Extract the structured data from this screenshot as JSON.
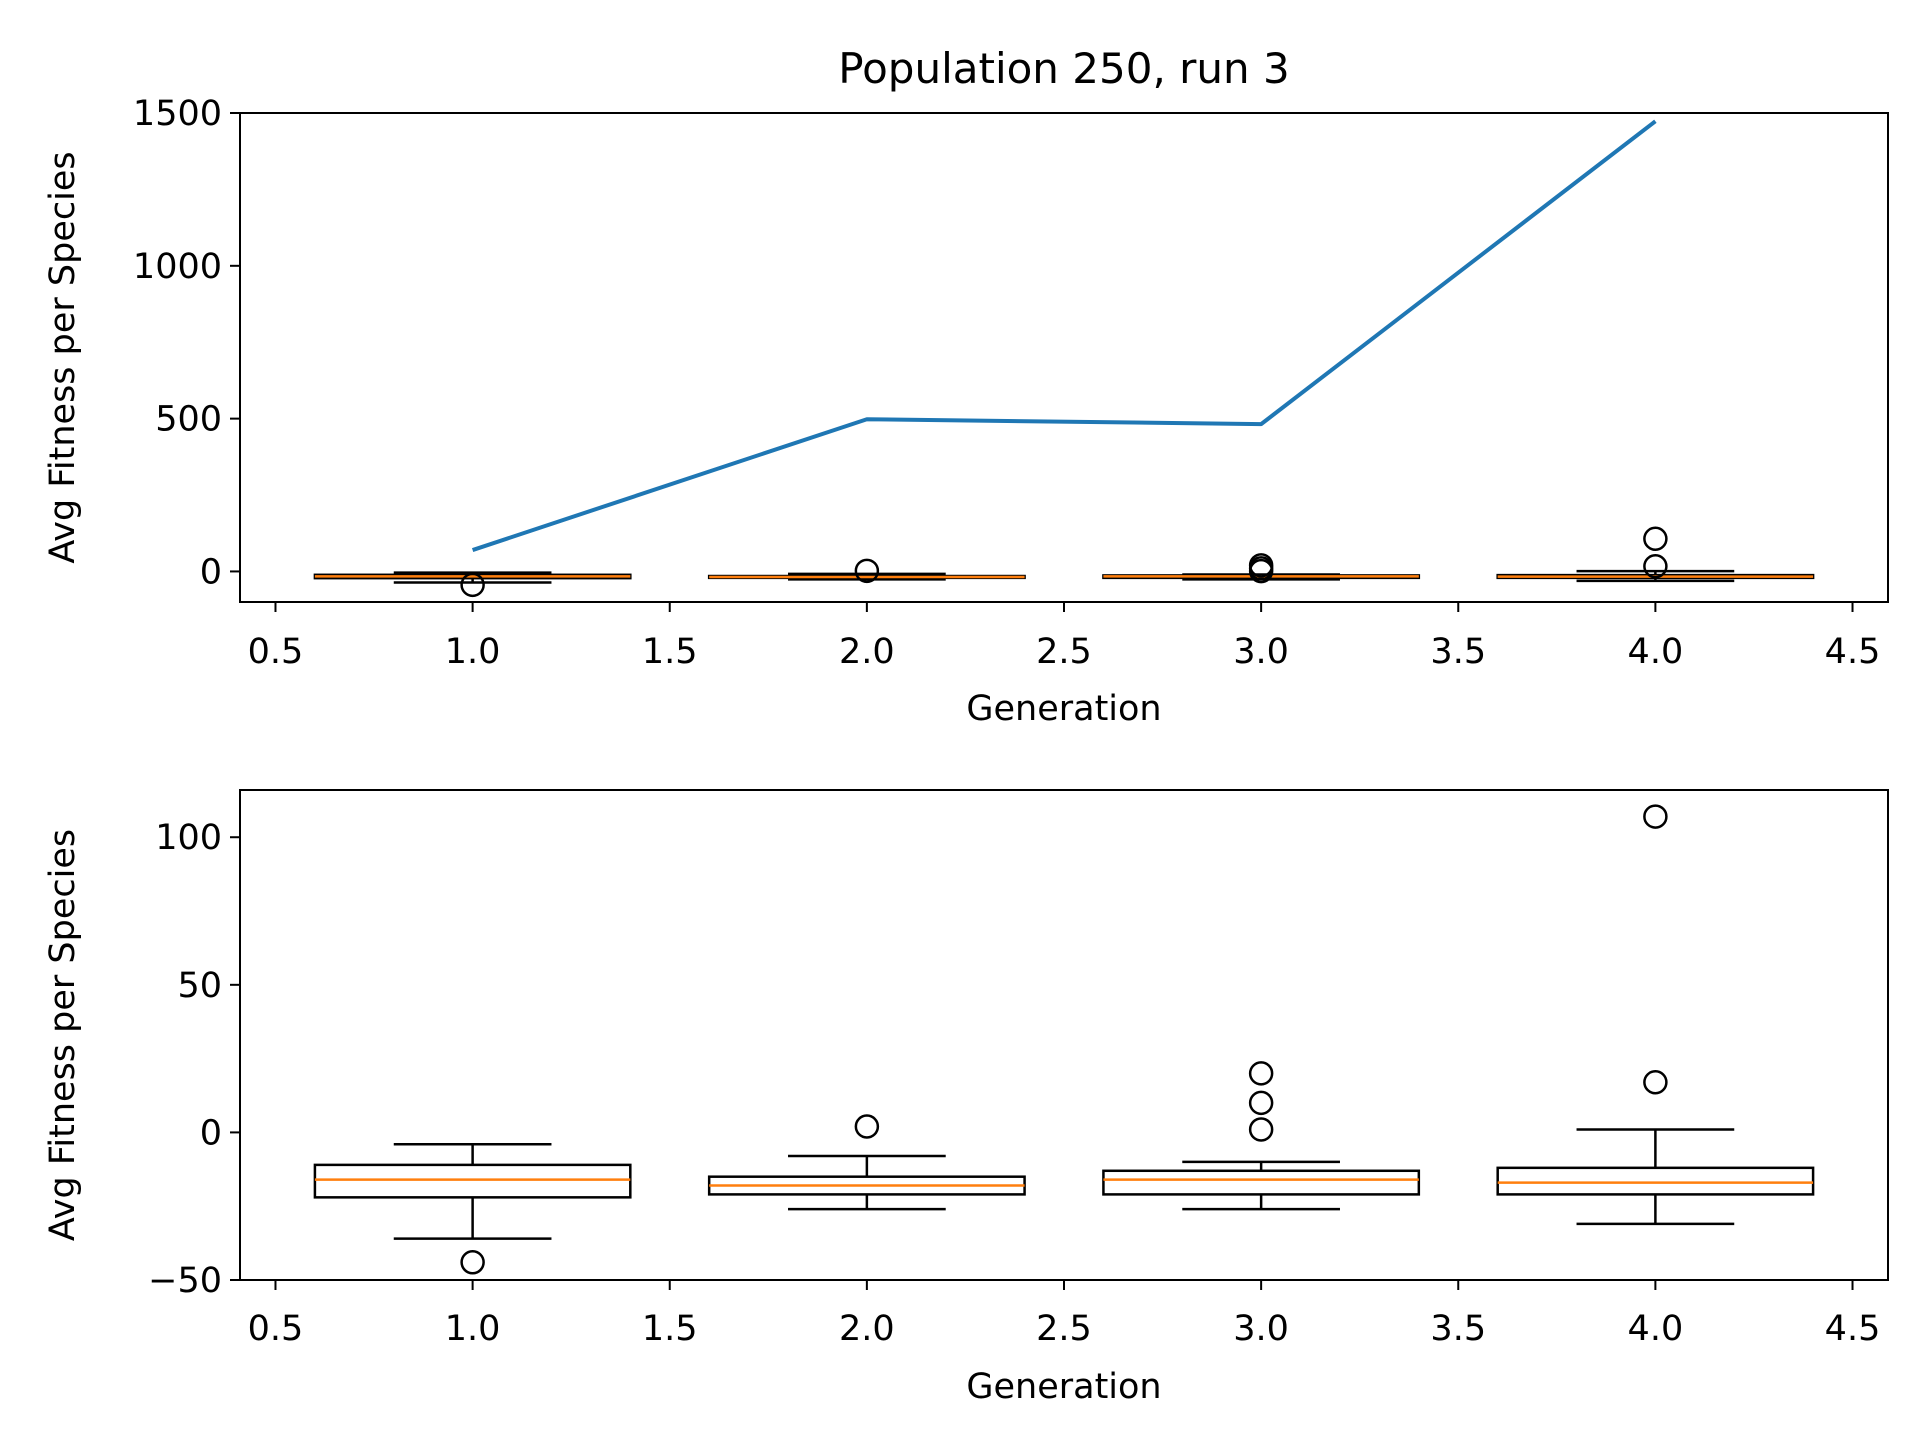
{
  "figure": {
    "title": "Population 250, run 3"
  },
  "chart_data": [
    {
      "type": "box+line",
      "title": "Population 250, run 3",
      "xlabel": "Generation",
      "ylabel": "Avg Fitness per Species",
      "xlim": [
        0.41,
        4.59
      ],
      "ylim": [
        -100,
        1500
      ],
      "xticks": [
        "0.5",
        "1.0",
        "1.5",
        "2.0",
        "2.5",
        "3.0",
        "3.5",
        "4.0",
        "4.5"
      ],
      "xtick_values": [
        0.5,
        1.0,
        1.5,
        2.0,
        2.5,
        3.0,
        3.5,
        4.0,
        4.5
      ],
      "yticks": [
        "0",
        "500",
        "1000",
        "1500"
      ],
      "ytick_values": [
        0,
        500,
        1000,
        1500
      ],
      "grid": false,
      "line_color": "#1f77b4",
      "median_color": "#ff7f0e",
      "line": {
        "x": [
          1,
          2,
          3,
          4
        ],
        "y": [
          70,
          498,
          482,
          1473
        ]
      },
      "boxes": [
        {
          "x": 1,
          "q1": -22,
          "median": -16,
          "q3": -11,
          "whislo": -36,
          "whishi": -4,
          "fliers": [
            -44
          ]
        },
        {
          "x": 2,
          "q1": -21,
          "median": -18,
          "q3": -15,
          "whislo": -26,
          "whishi": -8,
          "fliers": [
            2
          ]
        },
        {
          "x": 3,
          "q1": -21,
          "median": -16,
          "q3": -13,
          "whislo": -26,
          "whishi": -10,
          "fliers": [
            1,
            10,
            20
          ]
        },
        {
          "x": 4,
          "q1": -21,
          "median": -17,
          "q3": -12,
          "whislo": -31,
          "whishi": 1,
          "fliers": [
            17,
            107
          ]
        }
      ]
    },
    {
      "type": "box",
      "xlabel": "Generation",
      "ylabel": "Avg Fitness per Species",
      "xlim": [
        0.41,
        4.59
      ],
      "ylim": [
        -50,
        116
      ],
      "xticks": [
        "0.5",
        "1.0",
        "1.5",
        "2.0",
        "2.5",
        "3.0",
        "3.5",
        "4.0",
        "4.5"
      ],
      "xtick_values": [
        0.5,
        1.0,
        1.5,
        2.0,
        2.5,
        3.0,
        3.5,
        4.0,
        4.5
      ],
      "yticks": [
        "−50",
        "0",
        "50",
        "100"
      ],
      "ytick_values": [
        -50,
        0,
        50,
        100
      ],
      "grid": false,
      "median_color": "#ff7f0e",
      "boxes": [
        {
          "x": 1,
          "q1": -22,
          "median": -16,
          "q3": -11,
          "whislo": -36,
          "whishi": -4,
          "fliers": [
            -44
          ]
        },
        {
          "x": 2,
          "q1": -21,
          "median": -18,
          "q3": -15,
          "whislo": -26,
          "whishi": -8,
          "fliers": [
            2
          ]
        },
        {
          "x": 3,
          "q1": -21,
          "median": -16,
          "q3": -13,
          "whislo": -26,
          "whishi": -10,
          "fliers": [
            1,
            10,
            20
          ]
        },
        {
          "x": 4,
          "q1": -21,
          "median": -17,
          "q3": -12,
          "whislo": -31,
          "whishi": 1,
          "fliers": [
            17,
            107
          ]
        }
      ]
    }
  ]
}
